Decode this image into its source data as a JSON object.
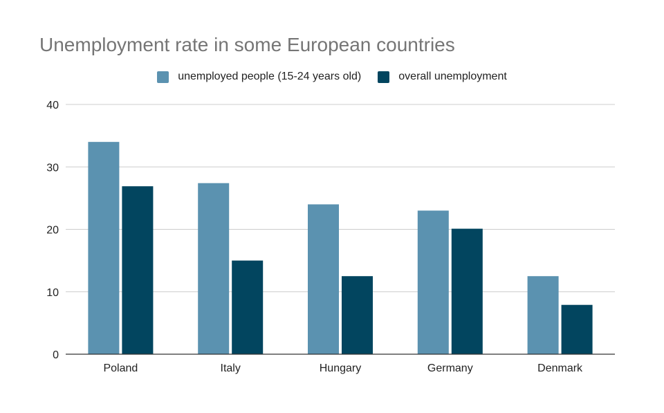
{
  "chart_data": {
    "type": "bar",
    "title": "Unemployment rate in some European countries",
    "categories": [
      "Poland",
      "Italy",
      "Hungary",
      "Germany",
      "Denmark"
    ],
    "series": [
      {
        "name": "unemployed people (15-24 years old)",
        "color": "#5b92b0",
        "values": [
          34,
          27.4,
          24,
          23,
          12.5
        ]
      },
      {
        "name": "overall unemployment",
        "color": "#02455f",
        "values": [
          26.9,
          15,
          12.5,
          20.1,
          7.9
        ]
      }
    ],
    "ylim": [
      0,
      40
    ],
    "yticks": [
      "0",
      "10",
      "20",
      "30",
      "40"
    ],
    "grid": true,
    "legend_position": "top"
  }
}
